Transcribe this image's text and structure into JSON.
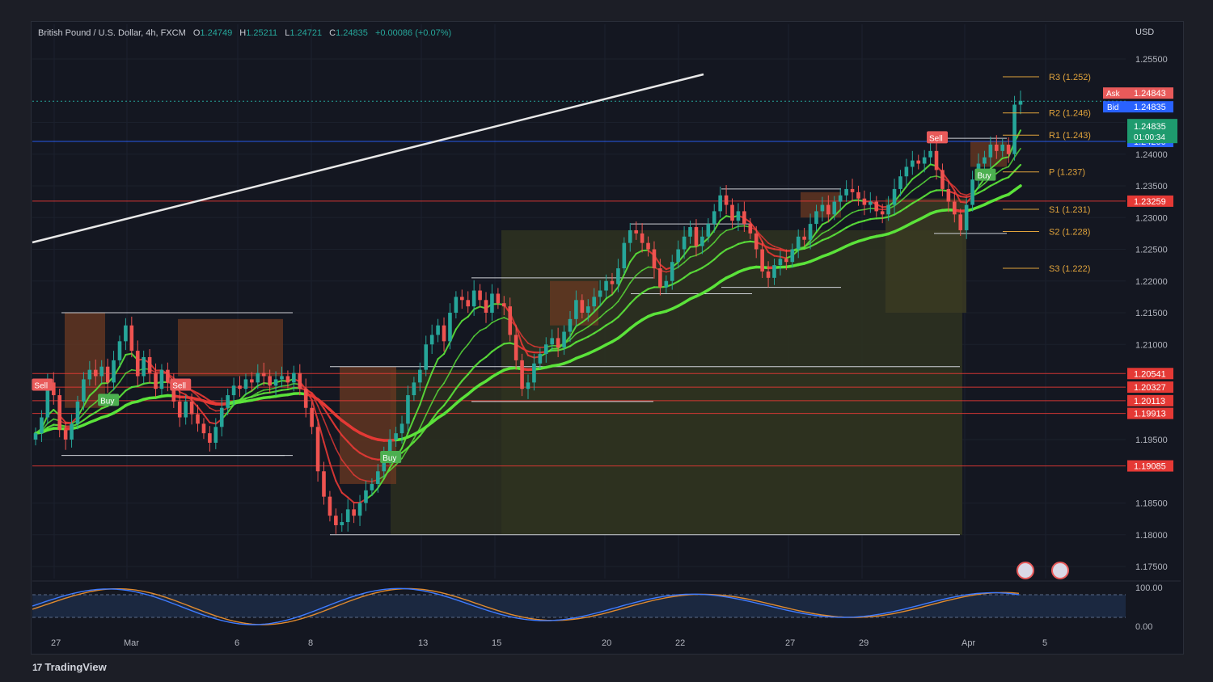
{
  "header": {
    "symbol": "British Pound / U.S. Dollar, 4h, FXCM",
    "open_label": "O",
    "open": "1.24749",
    "high_label": "H",
    "high": "1.25211",
    "low_label": "L",
    "low": "1.24721",
    "close_label": "C",
    "close": "1.24835",
    "change": "+0.00086 (+0.07%)"
  },
  "currency": "USD",
  "branding": "TradingView",
  "colors": {
    "up": "#26a69a",
    "down": "#ef5350",
    "green_line": "#5be33a",
    "red_line": "#e53935",
    "pivot": "#e0a33c",
    "blue_line": "#2962ff",
    "grid_red": "#b23b3b",
    "bg": "#141721"
  },
  "chart_data": [
    {
      "type": "candlestick",
      "title": "British Pound / U.S. Dollar, 4h, FXCM",
      "ylim": [
        1.1725,
        1.2565
      ],
      "y_ticks": [
        "1.25500",
        "1.24500",
        "1.24000",
        "1.23500",
        "1.23000",
        "1.22500",
        "1.22000",
        "1.21500",
        "1.21000",
        "1.19500",
        "1.18500",
        "1.18000",
        "1.17500"
      ],
      "x_ticks": [
        "27",
        "Mar",
        "6",
        "8",
        "13",
        "15",
        "20",
        "22",
        "27",
        "29",
        "Apr",
        "5"
      ],
      "last_price": {
        "value": "1.24835",
        "countdown": "01:00:34"
      },
      "ask": {
        "label": "Ask",
        "value": "1.24843"
      },
      "bid": {
        "label": "Bid",
        "value": "1.24835"
      },
      "horizontal_levels": [
        {
          "value": 1.242,
          "label": "1.24200",
          "color": "#2962ff"
        },
        {
          "value": 1.23259,
          "label": "1.23259",
          "color": "#e53935"
        },
        {
          "value": 1.20541,
          "label": "1.20541",
          "color": "#e53935"
        },
        {
          "value": 1.20327,
          "label": "1.20327",
          "color": "#e53935"
        },
        {
          "value": 1.20113,
          "label": "1.20113",
          "color": "#e53935"
        },
        {
          "value": 1.19913,
          "label": "1.19913",
          "color": "#e53935"
        },
        {
          "value": 1.19085,
          "label": "1.19085",
          "color": "#e53935"
        }
      ],
      "pivots": [
        {
          "label": "R3 (1.252)",
          "value": 1.2522
        },
        {
          "label": "R2 (1.246)",
          "value": 1.2465
        },
        {
          "label": "R1 (1.243)",
          "value": 1.243
        },
        {
          "label": "P (1.237)",
          "value": 1.2372
        },
        {
          "label": "S1 (1.231)",
          "value": 1.2313
        },
        {
          "label": "S2 (1.228)",
          "value": 1.2278
        },
        {
          "label": "S3 (1.222)",
          "value": 1.222
        }
      ],
      "signals": [
        {
          "label": "Sell",
          "bar": 1,
          "kind": "sell"
        },
        {
          "label": "Sell",
          "bar": 24,
          "kind": "sell"
        },
        {
          "label": "Buy",
          "bar": 12,
          "kind": "buy"
        },
        {
          "label": "Buy",
          "bar": 59,
          "kind": "buy"
        },
        {
          "label": "Sell",
          "bar": 150,
          "kind": "sell"
        },
        {
          "label": "Buy",
          "bar": 158,
          "kind": "buy"
        }
      ],
      "closes": [
        1.196,
        1.1985,
        1.204,
        1.202,
        1.1965,
        1.195,
        1.1975,
        1.201,
        1.2045,
        1.206,
        1.205,
        1.2065,
        1.204,
        1.2075,
        1.2105,
        1.213,
        1.209,
        1.205,
        1.208,
        1.2055,
        1.203,
        1.206,
        1.204,
        1.201,
        1.1985,
        1.201,
        1.199,
        1.1975,
        1.196,
        1.1945,
        1.197,
        1.2,
        1.202,
        1.2035,
        1.203,
        1.2045,
        1.204,
        1.2055,
        1.205,
        1.2035,
        1.2045,
        1.205,
        1.204,
        1.2055,
        1.203,
        1.2,
        1.197,
        1.19,
        1.186,
        1.183,
        1.1815,
        1.182,
        1.184,
        1.183,
        1.185,
        1.187,
        1.188,
        1.19,
        1.1925,
        1.195,
        1.196,
        1.1975,
        1.202,
        1.204,
        1.206,
        1.21,
        1.2115,
        1.213,
        1.2105,
        1.215,
        1.2175,
        1.217,
        1.216,
        1.2185,
        1.217,
        1.215,
        1.218,
        1.2165,
        1.216,
        1.2115,
        1.2075,
        1.203,
        1.204,
        1.207,
        1.2085,
        1.21,
        1.211,
        1.2095,
        1.212,
        1.214,
        1.217,
        1.215,
        1.216,
        1.2175,
        1.2185,
        1.22,
        1.2195,
        1.222,
        1.226,
        1.228,
        1.2275,
        1.226,
        1.225,
        1.222,
        1.219,
        1.22,
        1.223,
        1.225,
        1.227,
        1.2285,
        1.2255,
        1.227,
        1.229,
        1.231,
        1.2335,
        1.232,
        1.2295,
        1.231,
        1.229,
        1.2275,
        1.225,
        1.2215,
        1.2205,
        1.2225,
        1.2235,
        1.223,
        1.225,
        1.227,
        1.2265,
        1.229,
        1.231,
        1.232,
        1.2305,
        1.2325,
        1.2335,
        1.2345,
        1.234,
        1.233,
        1.232,
        1.2325,
        1.231,
        1.2305,
        1.232,
        1.2345,
        1.2365,
        1.238,
        1.239,
        1.2385,
        1.2395,
        1.2405,
        1.2375,
        1.2345,
        1.2325,
        1.2305,
        1.228,
        1.232,
        1.236,
        1.2385,
        1.2395,
        1.2415,
        1.2405,
        1.2415,
        1.24,
        1.2478,
        1.2484
      ],
      "oscillator": {
        "ylim": [
          0,
          100
        ],
        "y_ticks": [
          "100.00",
          "0.00"
        ]
      }
    }
  ]
}
